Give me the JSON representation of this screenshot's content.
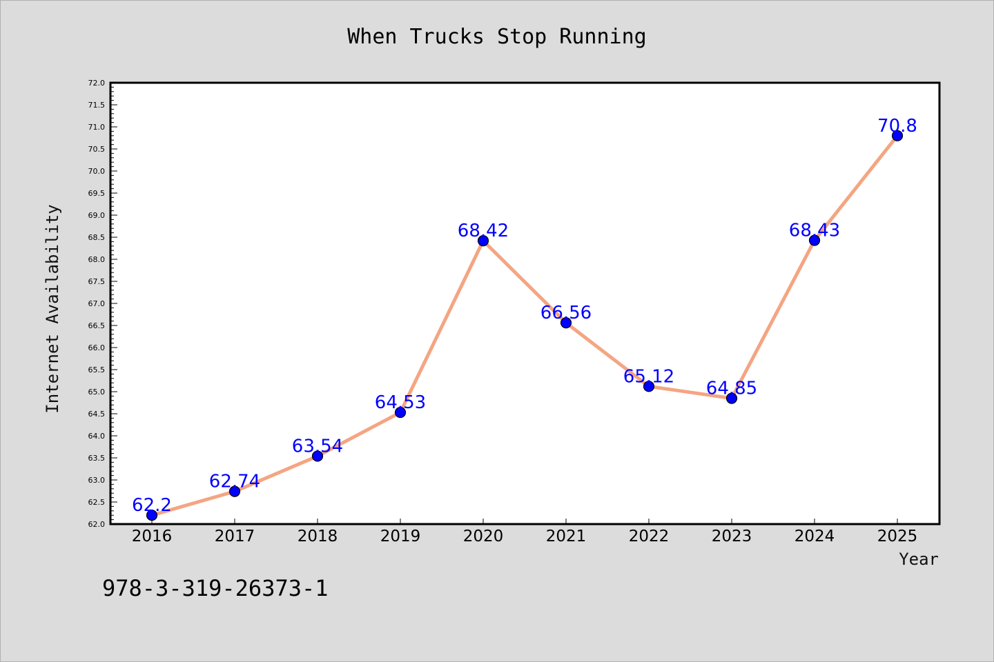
{
  "figure": {
    "title": "When Trucks Stop Running",
    "footer": "978-3-319-26373-1"
  },
  "chart_data": {
    "type": "line",
    "title": "When Trucks Stop Running",
    "xlabel": "Year",
    "ylabel": "Internet Availability",
    "categories": [
      "2016",
      "2017",
      "2018",
      "2019",
      "2020",
      "2021",
      "2022",
      "2023",
      "2024",
      "2025"
    ],
    "series": [
      {
        "values": [
          62.2,
          62.74,
          63.54,
          64.53,
          68.42,
          66.56,
          65.12,
          64.85,
          68.43,
          70.8
        ],
        "labels": [
          "62.2",
          "62.74",
          "63.54",
          "64.53",
          "68.42",
          "66.56",
          "65.12",
          "64.85",
          "68.43",
          "70.8"
        ],
        "line_color": "#f4a582",
        "marker_color": "#0000ff"
      }
    ],
    "ylim": [
      62.0,
      72.0
    ],
    "yticks": [
      "62.0",
      "62.5",
      "63.0",
      "63.5",
      "64.0",
      "64.5",
      "65.0",
      "65.5",
      "66.0",
      "66.5",
      "67.0",
      "67.5",
      "68.0",
      "68.5",
      "69.0",
      "69.5",
      "70.0",
      "70.5",
      "71.0",
      "71.5",
      "72.0"
    ],
    "grid": false,
    "legend": "none",
    "background": "#dcdcdc",
    "plot_background": "#ffffff"
  }
}
